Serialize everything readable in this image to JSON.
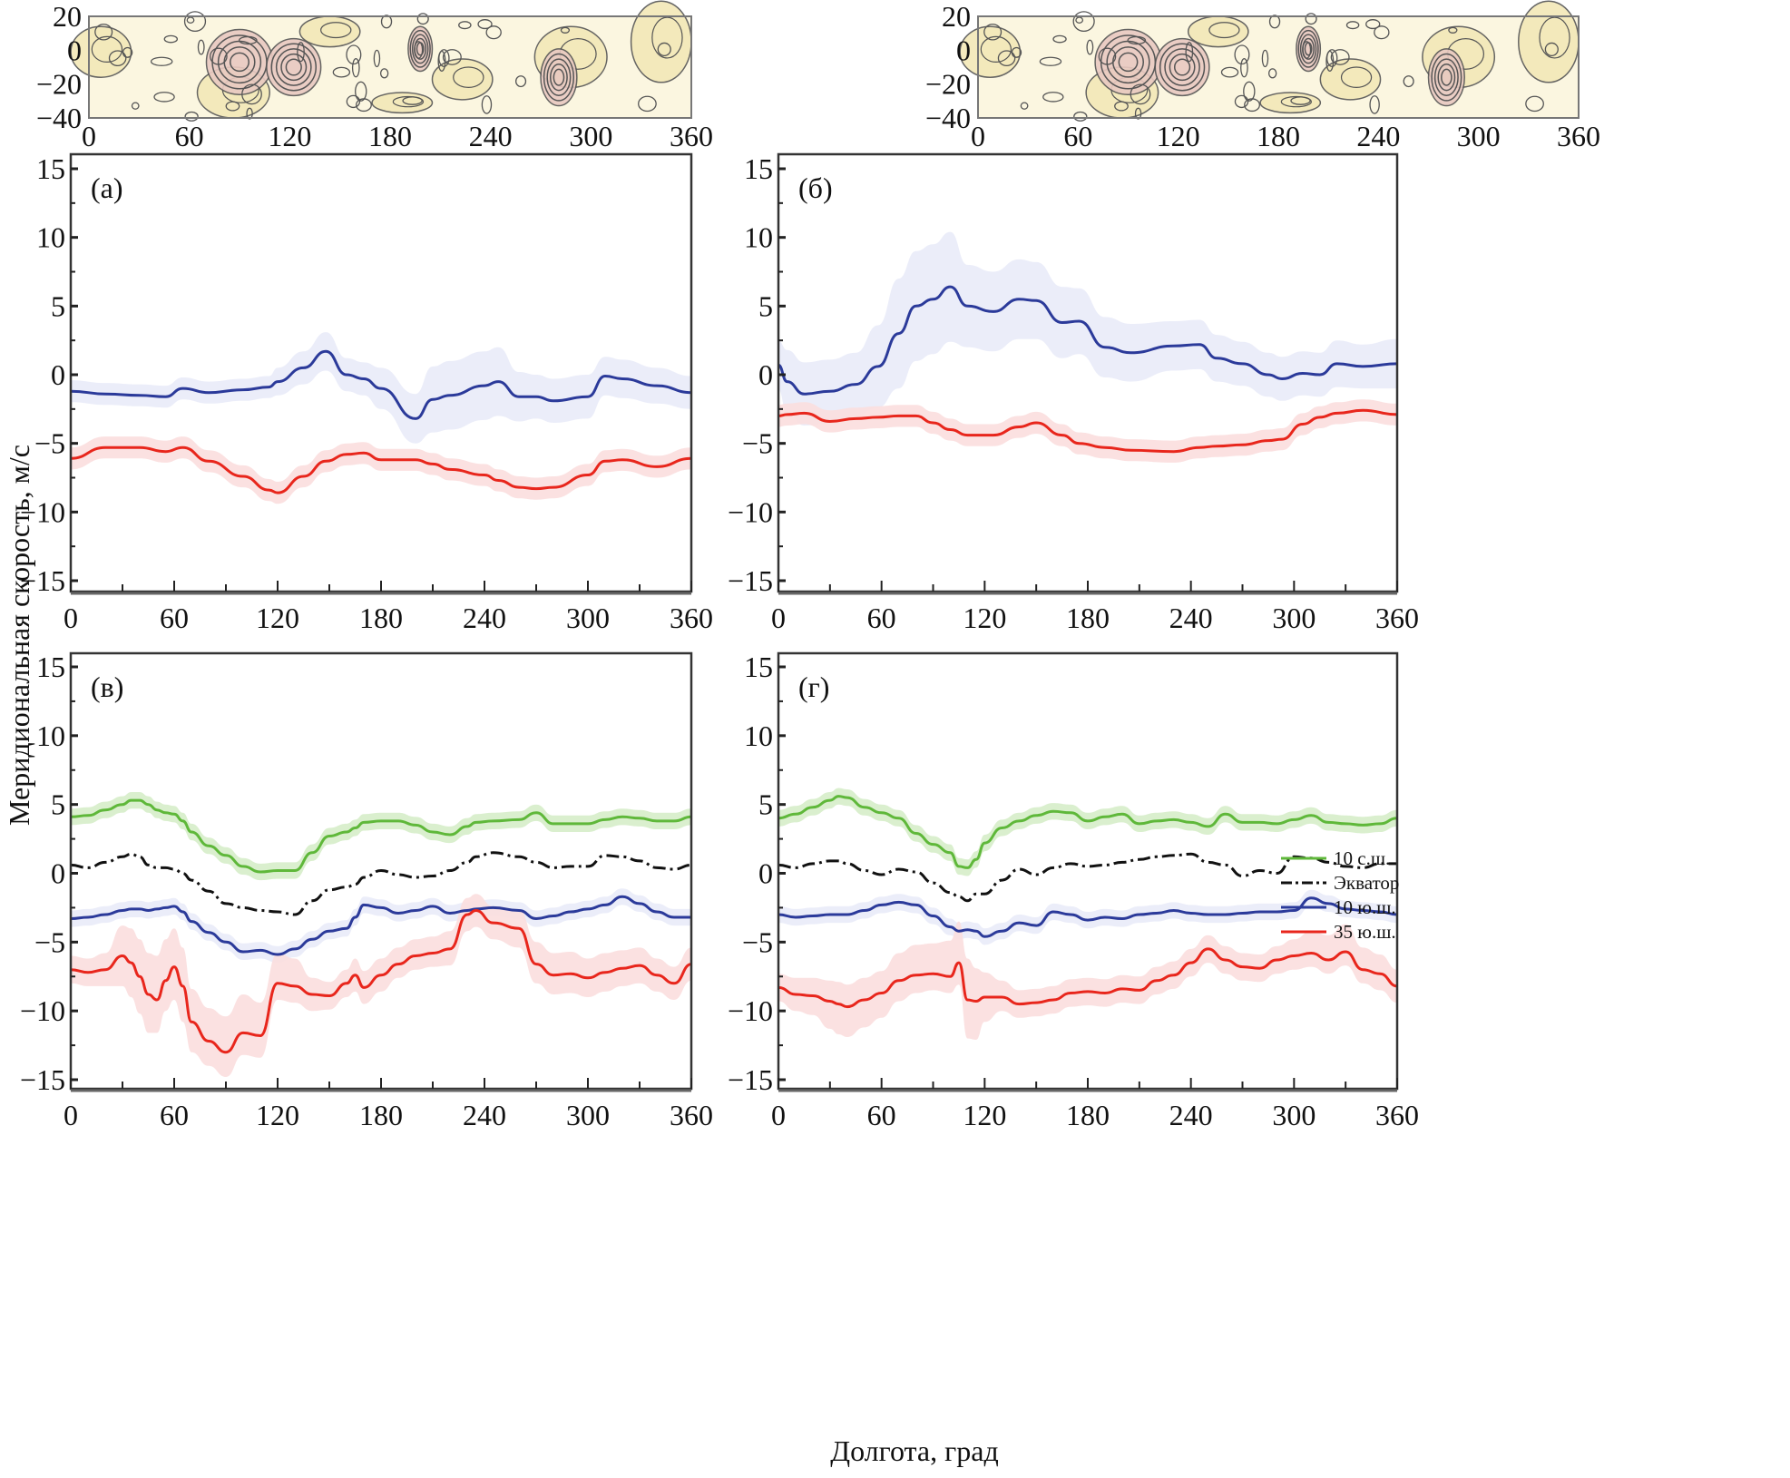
{
  "figure": {
    "ylabel": "Меридиональная скорость, м/с",
    "xlabel": "Долгота, град"
  },
  "legend": [
    {
      "label": "10 с.ш.",
      "color": "#5fb83a",
      "style": "solid"
    },
    {
      "label": "Экватор",
      "color": "#111111",
      "style": "dashdot"
    },
    {
      "label": "10 ю.ш.",
      "color": "#2b3a9a",
      "style": "solid"
    },
    {
      "label": "35 ю.ш.",
      "color": "#e8261c",
      "style": "solid"
    }
  ],
  "colors": {
    "n10": "#5fb83a",
    "n10_band": "#d6edc9",
    "eq": "#111111",
    "s10": "#2b3a9a",
    "s10_band": "#e9ebf8",
    "s35": "#e8261c",
    "s35_band": "#fbdede",
    "map_bg": "#fbf6e0",
    "map_fill": "#f3e8b8",
    "map_high": "#e9c9c1",
    "map_line": "#555555"
  },
  "maps": [
    {
      "name": "map-left",
      "xticks": [
        "0",
        "60",
        "120",
        "180",
        "240",
        "300",
        "360"
      ],
      "yticks": [
        "20",
        "0",
        "−20",
        "−40"
      ]
    },
    {
      "name": "map-right",
      "xticks": [
        "0",
        "60",
        "120",
        "180",
        "240",
        "300",
        "360"
      ],
      "yticks": [
        "20",
        "0",
        "−20",
        "−40"
      ]
    }
  ],
  "chart_data": [
    {
      "type": "line",
      "panel": "(а)",
      "xlim": [
        0,
        360
      ],
      "ylim": [
        -16,
        16
      ],
      "xticks": [
        "0",
        "60",
        "120",
        "180",
        "240",
        "300",
        "360"
      ],
      "yticks": [
        "15",
        "10",
        "5",
        "0",
        "−5",
        "−10",
        "−15"
      ],
      "ytick_values": [
        15,
        10,
        5,
        0,
        -5,
        -10,
        -15
      ],
      "xtick_values": [
        0,
        60,
        120,
        180,
        240,
        300,
        360
      ],
      "x": [
        0,
        20,
        40,
        55,
        65,
        80,
        100,
        115,
        120,
        135,
        148,
        160,
        170,
        180,
        200,
        210,
        220,
        240,
        248,
        260,
        270,
        280,
        300,
        310,
        320,
        340,
        360
      ],
      "series": [
        {
          "key": "s10",
          "name": "10 ю.ш.",
          "values": [
            -1.2,
            -1.4,
            -1.5,
            -1.6,
            -1.0,
            -1.3,
            -1.1,
            -0.9,
            -0.5,
            0.5,
            1.7,
            0.0,
            -0.3,
            -1.0,
            -3.2,
            -1.8,
            -1.5,
            -0.8,
            -0.5,
            -1.6,
            -1.6,
            -1.9,
            -1.6,
            -0.1,
            -0.3,
            -0.8,
            -1.3
          ],
          "band": [
            0.8,
            0.8,
            0.8,
            0.8,
            0.8,
            0.8,
            0.8,
            0.8,
            1.0,
            1.2,
            1.4,
            1.2,
            1.2,
            1.5,
            1.8,
            2.4,
            2.5,
            2.5,
            2.5,
            1.8,
            1.6,
            1.6,
            1.6,
            1.4,
            1.4,
            1.3,
            1.2
          ]
        },
        {
          "key": "s35",
          "name": "35 ю.ш.",
          "values": [
            -6.1,
            -5.3,
            -5.3,
            -5.6,
            -5.3,
            -6.3,
            -7.4,
            -8.4,
            -8.6,
            -7.4,
            -6.3,
            -5.8,
            -5.7,
            -6.2,
            -6.2,
            -6.5,
            -6.9,
            -7.3,
            -7.7,
            -8.2,
            -8.3,
            -8.2,
            -7.3,
            -6.3,
            -6.2,
            -6.7,
            -6.1
          ],
          "band": [
            0.8,
            0.8,
            0.8,
            0.8,
            0.8,
            0.8,
            0.8,
            0.8,
            0.8,
            0.8,
            0.8,
            0.8,
            0.8,
            0.8,
            0.8,
            0.8,
            0.8,
            0.8,
            0.8,
            0.8,
            0.8,
            0.8,
            0.8,
            0.8,
            0.8,
            0.8,
            0.8
          ]
        }
      ]
    },
    {
      "type": "line",
      "panel": "(б)",
      "xlim": [
        0,
        360
      ],
      "ylim": [
        -16,
        16
      ],
      "xticks": [
        "0",
        "60",
        "120",
        "180",
        "240",
        "300",
        "360"
      ],
      "yticks": [
        "15",
        "10",
        "5",
        "0",
        "−5",
        "−10",
        "−15"
      ],
      "ytick_values": [
        15,
        10,
        5,
        0,
        -5,
        -10,
        -15
      ],
      "xtick_values": [
        0,
        60,
        120,
        180,
        240,
        300,
        360
      ],
      "x": [
        0,
        5,
        15,
        30,
        45,
        58,
        70,
        80,
        90,
        100,
        110,
        125,
        140,
        150,
        165,
        175,
        190,
        205,
        230,
        245,
        255,
        270,
        285,
        293,
        305,
        315,
        325,
        340,
        360
      ],
      "series": [
        {
          "key": "s10",
          "name": "10 ю.ш.",
          "values": [
            0.7,
            -0.5,
            -1.4,
            -1.2,
            -0.7,
            0.6,
            3.0,
            5.0,
            5.5,
            6.4,
            5.0,
            4.6,
            5.5,
            5.4,
            3.8,
            3.9,
            2.0,
            1.6,
            2.1,
            2.2,
            1.2,
            0.8,
            0.0,
            -0.3,
            0.1,
            0.0,
            0.8,
            0.6,
            0.8
          ]
        },
        {
          "key": "s35",
          "name": "35 ю.ш.",
          "values": [
            -3.0,
            -2.9,
            -2.8,
            -3.4,
            -3.2,
            -3.1,
            -3.0,
            -3.0,
            -3.5,
            -4.0,
            -4.4,
            -4.4,
            -3.8,
            -3.5,
            -4.4,
            -5.0,
            -5.3,
            -5.5,
            -5.6,
            -5.3,
            -5.2,
            -5.1,
            -4.8,
            -4.7,
            -3.6,
            -3.1,
            -2.8,
            -2.6,
            -2.9
          ]
        }
      ],
      "bands": {
        "s10": [
          1.8,
          2.3,
          2.3,
          2.3,
          2.3,
          3.0,
          4.0,
          4.0,
          4.0,
          4.0,
          3.0,
          2.9,
          2.9,
          2.8,
          2.6,
          2.4,
          2.2,
          2.1,
          1.8,
          1.8,
          1.7,
          1.6,
          1.6,
          1.6,
          1.6,
          1.6,
          1.7,
          1.6,
          1.8
        ],
        "s35": [
          0.8,
          0.8,
          0.8,
          0.8,
          0.8,
          0.8,
          0.8,
          0.8,
          0.8,
          0.8,
          0.8,
          0.8,
          0.8,
          0.8,
          0.8,
          0.8,
          0.8,
          0.8,
          0.8,
          0.8,
          0.8,
          0.8,
          0.8,
          0.8,
          0.8,
          0.8,
          0.8,
          0.8,
          0.8
        ]
      }
    },
    {
      "type": "line",
      "panel": "(в)",
      "xlim": [
        0,
        360
      ],
      "ylim": [
        -16,
        16
      ],
      "xticks": [
        "0",
        "60",
        "120",
        "180",
        "240",
        "300",
        "360"
      ],
      "yticks": [
        "15",
        "10",
        "5",
        "0",
        "−5",
        "−10",
        "−15"
      ],
      "ytick_values": [
        15,
        10,
        5,
        0,
        -5,
        -10,
        -15
      ],
      "xtick_values": [
        0,
        60,
        120,
        180,
        240,
        300,
        360
      ],
      "x": [
        0,
        10,
        20,
        30,
        35,
        40,
        45,
        50,
        55,
        60,
        65,
        70,
        80,
        90,
        100,
        110,
        120,
        130,
        140,
        150,
        160,
        165,
        170,
        180,
        190,
        200,
        210,
        220,
        230,
        235,
        245,
        260,
        270,
        280,
        290,
        300,
        310,
        320,
        330,
        340,
        350,
        360
      ],
      "series": [
        {
          "key": "n10",
          "name": "10 с.ш.",
          "values": [
            4.1,
            4.2,
            4.6,
            5.0,
            5.3,
            5.3,
            5.0,
            4.6,
            4.4,
            4.3,
            3.8,
            3.0,
            2.0,
            1.3,
            0.5,
            0.1,
            0.2,
            0.2,
            1.5,
            2.7,
            3.0,
            3.3,
            3.7,
            3.8,
            3.8,
            3.5,
            3.0,
            2.8,
            3.4,
            3.7,
            3.8,
            3.9,
            4.4,
            3.6,
            3.6,
            3.6,
            3.9,
            4.1,
            4.0,
            3.8,
            3.8,
            4.1
          ],
          "band": 0.6
        },
        {
          "key": "eq",
          "name": "Экватор",
          "values": [
            0.6,
            0.4,
            0.8,
            1.2,
            1.4,
            1.2,
            0.6,
            0.4,
            0.4,
            0.3,
            0.0,
            -0.5,
            -1.3,
            -2.2,
            -2.5,
            -2.7,
            -2.8,
            -3.0,
            -2.0,
            -1.2,
            -1.0,
            -0.8,
            -0.3,
            0.2,
            -0.1,
            -0.3,
            -0.2,
            0.2,
            0.8,
            1.2,
            1.5,
            1.2,
            0.8,
            0.4,
            0.5,
            0.5,
            1.3,
            1.2,
            0.9,
            0.4,
            0.3,
            0.6
          ]
        },
        {
          "key": "s10",
          "name": "10 ю.ш.",
          "values": [
            -3.3,
            -3.2,
            -3.0,
            -2.7,
            -2.6,
            -2.6,
            -2.7,
            -2.6,
            -2.5,
            -2.4,
            -2.8,
            -3.5,
            -4.3,
            -5.0,
            -5.7,
            -5.6,
            -5.9,
            -5.5,
            -4.8,
            -4.2,
            -4.0,
            -3.2,
            -2.3,
            -2.5,
            -2.9,
            -2.7,
            -2.4,
            -2.9,
            -2.7,
            -2.6,
            -2.5,
            -2.7,
            -3.3,
            -3.1,
            -2.8,
            -2.6,
            -2.3,
            -1.7,
            -2.2,
            -2.8,
            -3.2,
            -3.2
          ],
          "band": 0.6
        },
        {
          "key": "s35",
          "name": "35 ю.ш.",
          "values": [
            -7.0,
            -7.2,
            -7.0,
            -6.0,
            -6.5,
            -7.5,
            -8.8,
            -9.2,
            -7.8,
            -6.8,
            -8.2,
            -10.8,
            -12.2,
            -13.0,
            -11.6,
            -11.8,
            -8.0,
            -8.2,
            -8.8,
            -8.9,
            -8.0,
            -7.4,
            -8.3,
            -7.4,
            -6.6,
            -6.0,
            -5.8,
            -5.5,
            -3.0,
            -2.7,
            -3.6,
            -4.0,
            -6.6,
            -7.4,
            -7.3,
            -7.6,
            -7.2,
            -6.9,
            -6.7,
            -7.4,
            -8.0,
            -6.6
          ],
          "band_hi": [
            1.0,
            1.0,
            1.2,
            2.2,
            2.5,
            2.7,
            3.0,
            3.2,
            3.0,
            2.8,
            2.8,
            2.4,
            2.4,
            2.6,
            2.8,
            2.4,
            2.2,
            2.0,
            1.2,
            1.0,
            1.0,
            1.2,
            1.2,
            1.2,
            1.2,
            1.2,
            1.2,
            1.3,
            1.2,
            1.2,
            1.2,
            1.4,
            1.6,
            1.6,
            1.6,
            1.4,
            1.4,
            1.3,
            1.3,
            1.2,
            1.2,
            1.2
          ],
          "band_lo": [
            1.0,
            1.0,
            1.2,
            2.2,
            2.5,
            2.7,
            2.8,
            2.4,
            2.2,
            2.4,
            2.6,
            2.2,
            1.8,
            1.8,
            1.6,
            1.6,
            1.2,
            1.2,
            1.2,
            1.0,
            1.0,
            1.2,
            1.2,
            1.2,
            1.0,
            1.0,
            1.0,
            1.2,
            1.2,
            1.2,
            1.2,
            1.4,
            1.4,
            1.4,
            1.4,
            1.4,
            1.4,
            1.3,
            1.3,
            1.2,
            1.2,
            1.2
          ]
        }
      ]
    },
    {
      "type": "line",
      "panel": "(г)",
      "xlim": [
        0,
        360
      ],
      "ylim": [
        -16,
        16
      ],
      "xticks": [
        "0",
        "60",
        "120",
        "180",
        "240",
        "300",
        "360"
      ],
      "yticks": [
        "15",
        "10",
        "5",
        "0",
        "−5",
        "−10",
        "−15"
      ],
      "ytick_values": [
        15,
        10,
        5,
        0,
        -5,
        -10,
        -15
      ],
      "xtick_values": [
        0,
        60,
        120,
        180,
        240,
        300,
        360
      ],
      "x": [
        0,
        10,
        20,
        30,
        35,
        40,
        50,
        60,
        70,
        80,
        90,
        100,
        105,
        110,
        115,
        120,
        130,
        140,
        150,
        160,
        170,
        180,
        190,
        200,
        210,
        220,
        230,
        240,
        250,
        260,
        270,
        280,
        290,
        300,
        310,
        320,
        330,
        340,
        350,
        360
      ],
      "series": [
        {
          "key": "n10",
          "name": "10 с.ш.",
          "values": [
            4.0,
            4.3,
            4.8,
            5.3,
            5.6,
            5.5,
            4.8,
            4.4,
            4.0,
            2.9,
            2.1,
            1.5,
            0.5,
            0.4,
            1.0,
            2.2,
            3.3,
            3.8,
            4.2,
            4.5,
            4.4,
            3.8,
            4.1,
            4.3,
            3.6,
            3.8,
            3.9,
            3.7,
            3.4,
            4.3,
            3.7,
            3.7,
            3.6,
            3.9,
            4.2,
            3.7,
            3.6,
            3.5,
            3.6,
            4.0
          ],
          "band": 0.6
        },
        {
          "key": "eq",
          "name": "Экватор",
          "values": [
            0.6,
            0.4,
            0.7,
            0.9,
            0.9,
            0.7,
            0.2,
            -0.1,
            0.3,
            0.1,
            -0.7,
            -1.4,
            -1.7,
            -2.0,
            -1.5,
            -1.5,
            -0.5,
            0.3,
            -0.1,
            0.4,
            0.7,
            0.5,
            0.6,
            0.8,
            1.0,
            1.2,
            1.3,
            1.4,
            0.8,
            0.6,
            -0.2,
            0.2,
            0.0,
            1.2,
            1.1,
            0.8,
            0.5,
            0.4,
            0.7,
            0.7
          ]
        },
        {
          "key": "s10",
          "name": "10 ю.ш.",
          "values": [
            -3.0,
            -3.2,
            -3.1,
            -3.0,
            -3.0,
            -3.0,
            -2.7,
            -2.3,
            -2.1,
            -2.3,
            -3.1,
            -3.9,
            -4.2,
            -4.1,
            -4.2,
            -4.6,
            -4.2,
            -3.6,
            -3.8,
            -2.8,
            -3.0,
            -3.4,
            -3.2,
            -3.3,
            -3.0,
            -2.9,
            -2.7,
            -2.9,
            -3.0,
            -3.0,
            -2.9,
            -2.8,
            -2.8,
            -2.7,
            -1.8,
            -2.2,
            -2.6,
            -2.7,
            -2.8,
            -3.0
          ],
          "band": 0.6
        },
        {
          "key": "s35",
          "name": "35 ю.ш.",
          "values": [
            -8.3,
            -8.8,
            -8.9,
            -9.3,
            -9.5,
            -9.7,
            -9.2,
            -8.7,
            -7.8,
            -7.4,
            -7.3,
            -7.5,
            -6.5,
            -9.2,
            -9.3,
            -9.0,
            -9.0,
            -9.5,
            -9.4,
            -9.2,
            -8.7,
            -8.6,
            -8.7,
            -8.4,
            -8.5,
            -7.8,
            -7.4,
            -6.5,
            -5.5,
            -6.3,
            -6.8,
            -6.9,
            -6.3,
            -6.0,
            -5.8,
            -6.3,
            -5.7,
            -7.0,
            -7.3,
            -8.2
          ],
          "band_hi": [
            1.0,
            1.2,
            1.3,
            1.5,
            1.6,
            1.6,
            1.6,
            1.6,
            2.0,
            2.2,
            2.2,
            2.6,
            3.0,
            3.0,
            2.4,
            1.8,
            1.2,
            1.0,
            1.0,
            1.0,
            1.0,
            1.0,
            1.0,
            1.0,
            1.0,
            1.0,
            1.0,
            1.0,
            1.0,
            1.0,
            1.0,
            1.0,
            1.0,
            1.2,
            1.6,
            1.8,
            2.0,
            1.6,
            1.4,
            1.2
          ],
          "band_lo": [
            1.0,
            1.2,
            1.4,
            2.0,
            2.2,
            2.2,
            2.0,
            1.8,
            1.5,
            1.3,
            1.2,
            1.2,
            1.6,
            2.8,
            2.8,
            1.8,
            1.0,
            1.0,
            1.0,
            1.0,
            1.0,
            1.0,
            1.0,
            1.0,
            1.0,
            1.0,
            1.0,
            1.0,
            1.0,
            1.0,
            1.0,
            1.0,
            1.0,
            1.0,
            1.0,
            1.0,
            1.0,
            1.0,
            1.2,
            1.2
          ]
        }
      ]
    }
  ]
}
